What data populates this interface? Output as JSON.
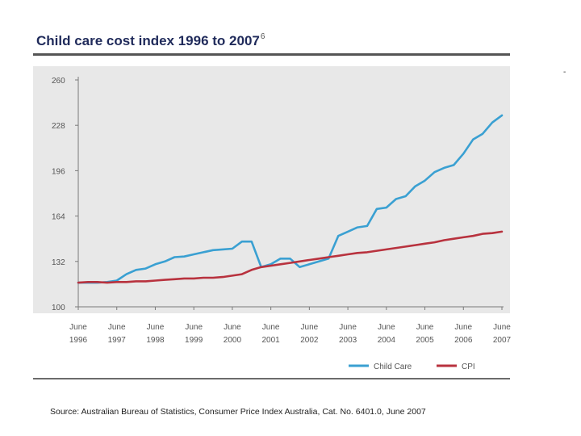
{
  "header": {
    "title": "Child care cost index 1996 to 2007",
    "footnote_marker": "6"
  },
  "stray_mark": "-",
  "source": "Source: Australian Bureau of Statistics, Consumer Price Index Australia, Cat. No. 6401.0, June 2007",
  "colors": {
    "child_care": "#3aa0d2",
    "cpi": "#b8323e",
    "plot_background": "#e8e8e8",
    "axis": "#7a7a7a"
  },
  "chart_data": {
    "type": "line",
    "title": "Child care cost index 1996 to 2007",
    "xlabel": "",
    "ylabel": "",
    "ylim": [
      100,
      260
    ],
    "xlim": [
      1996.5,
      2007.5
    ],
    "yticks": [
      "100",
      "132",
      "164",
      "196",
      "228",
      "260"
    ],
    "xticks": [
      {
        "line1": "June",
        "line2": "1996"
      },
      {
        "line1": "June",
        "line2": "1997"
      },
      {
        "line1": "June",
        "line2": "1998"
      },
      {
        "line1": "June",
        "line2": "1999"
      },
      {
        "line1": "June",
        "line2": "2000"
      },
      {
        "line1": "June",
        "line2": "2001"
      },
      {
        "line1": "June",
        "line2": "2002"
      },
      {
        "line1": "June",
        "line2": "2003"
      },
      {
        "line1": "June",
        "line2": "2004"
      },
      {
        "line1": "June",
        "line2": "2005"
      },
      {
        "line1": "June",
        "line2": "2006"
      },
      {
        "line1": "June",
        "line2": "2007"
      }
    ],
    "grid": false,
    "legend_position": "bottom-right",
    "series": [
      {
        "name": "Child Care",
        "x": [
          1996.5,
          1996.75,
          1997.0,
          1997.25,
          1997.5,
          1997.75,
          1998.0,
          1998.25,
          1998.5,
          1998.75,
          1999.0,
          1999.25,
          1999.5,
          1999.75,
          2000.0,
          2000.25,
          2000.5,
          2000.75,
          2001.0,
          2001.25,
          2001.5,
          2001.75,
          2002.0,
          2002.25,
          2002.5,
          2002.75,
          2003.0,
          2003.25,
          2003.5,
          2003.75,
          2004.0,
          2004.25,
          2004.5,
          2004.75,
          2005.0,
          2005.25,
          2005.5,
          2005.75,
          2006.0,
          2006.25,
          2006.5,
          2006.75,
          2007.0,
          2007.25,
          2007.5
        ],
        "values": [
          117,
          117,
          117,
          117.5,
          118.5,
          123,
          126,
          127,
          130,
          132,
          135,
          135.5,
          137,
          138.5,
          140,
          140.5,
          141,
          146,
          146,
          128,
          130,
          134,
          134,
          128,
          130,
          132,
          134,
          150,
          153,
          156,
          157,
          169,
          170,
          176,
          178,
          185,
          189,
          195,
          198,
          200,
          208,
          218,
          222,
          230,
          235
        ]
      },
      {
        "name": "CPI",
        "x": [
          1996.5,
          1996.75,
          1997.0,
          1997.25,
          1997.5,
          1997.75,
          1998.0,
          1998.25,
          1998.5,
          1998.75,
          1999.0,
          1999.25,
          1999.5,
          1999.75,
          2000.0,
          2000.25,
          2000.5,
          2000.75,
          2001.0,
          2001.25,
          2001.5,
          2001.75,
          2002.0,
          2002.25,
          2002.5,
          2002.75,
          2003.0,
          2003.25,
          2003.5,
          2003.75,
          2004.0,
          2004.25,
          2004.5,
          2004.75,
          2005.0,
          2005.25,
          2005.5,
          2005.75,
          2006.0,
          2006.25,
          2006.5,
          2006.75,
          2007.0,
          2007.25,
          2007.5
        ],
        "values": [
          117,
          117.5,
          117.5,
          117,
          117.5,
          117.5,
          118,
          118,
          118.5,
          119,
          119.5,
          120,
          120,
          120.5,
          120.5,
          121,
          122,
          123,
          126,
          128,
          129,
          130,
          131,
          132,
          133,
          134,
          135,
          136,
          137,
          138,
          138.5,
          139.5,
          140.5,
          141.5,
          142.5,
          143.5,
          144.5,
          145.5,
          147,
          148,
          149,
          150,
          151.5,
          152,
          153
        ]
      }
    ]
  }
}
